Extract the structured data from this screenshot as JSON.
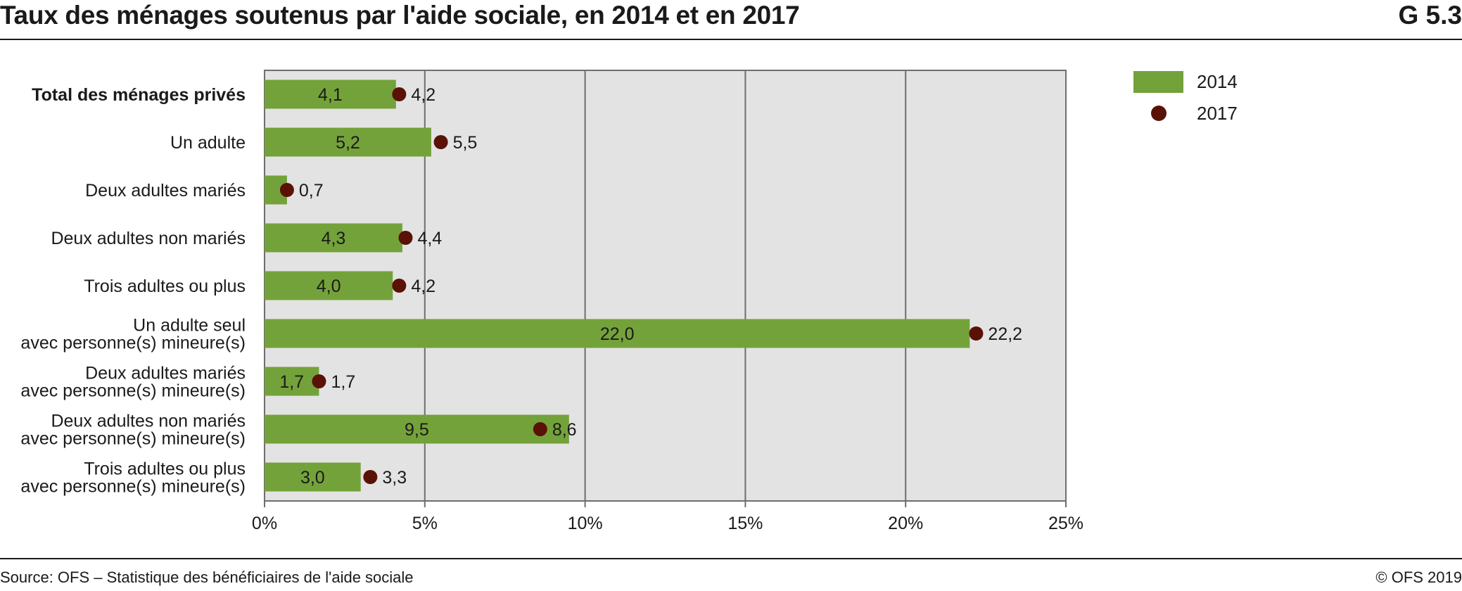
{
  "header": {
    "title": "Taux des ménages soutenus par l'aide sociale, en 2014 et en 2017",
    "code": "G 5.3"
  },
  "footer": {
    "source": "Source: OFS – Statistique des bénéficiaires de l'aide sociale",
    "copyright": "© OFS 2019"
  },
  "colors": {
    "bar_2014": "#74a23a",
    "dot_2017": "#5a1106",
    "plot_background": "#e3e3e3",
    "grid": "#6e6e6e"
  },
  "chart_data": {
    "type": "bar",
    "orientation": "horizontal",
    "title": "Taux des ménages soutenus par l'aide sociale, en 2014 et en 2017",
    "categories": [
      [
        "Total des ménages privés"
      ],
      [
        "Un adulte"
      ],
      [
        "Deux adultes mariés"
      ],
      [
        "Deux adultes non mariés"
      ],
      [
        "Trois adultes ou plus"
      ],
      [
        "Un adulte seul",
        "avec personne(s) mineure(s)"
      ],
      [
        "Deux adultes mariés",
        "avec personne(s) mineure(s)"
      ],
      [
        "Deux adultes non mariés",
        "avec personne(s) mineure(s)"
      ],
      [
        "Trois adultes ou plus",
        "avec personne(s) mineure(s)"
      ]
    ],
    "bold_categories": [
      0
    ],
    "series": [
      {
        "name": "2014",
        "mark": "bar",
        "values": [
          4.1,
          5.2,
          0.7,
          4.3,
          4.0,
          22.0,
          1.7,
          9.5,
          3.0
        ],
        "labels": [
          "4,1",
          "5,2",
          "",
          "4,3",
          "4,0",
          "22,0",
          "1,7",
          "9,5",
          "3,0"
        ]
      },
      {
        "name": "2017",
        "mark": "dot",
        "values": [
          4.2,
          5.5,
          0.7,
          4.4,
          4.2,
          22.2,
          1.7,
          8.6,
          3.3
        ],
        "labels": [
          "4,2",
          "5,5",
          "0,7",
          "4,4",
          "4,2",
          "22,2",
          "1,7",
          "8,6",
          "3,3"
        ]
      }
    ],
    "xlim": [
      0,
      25
    ],
    "xticks": [
      0,
      5,
      10,
      15,
      20,
      25
    ],
    "xtick_labels": [
      "0%",
      "5%",
      "10%",
      "15%",
      "20%",
      "25%"
    ],
    "xlabel": "",
    "ylabel": "",
    "grid": "vertical",
    "legend_position": "right"
  }
}
